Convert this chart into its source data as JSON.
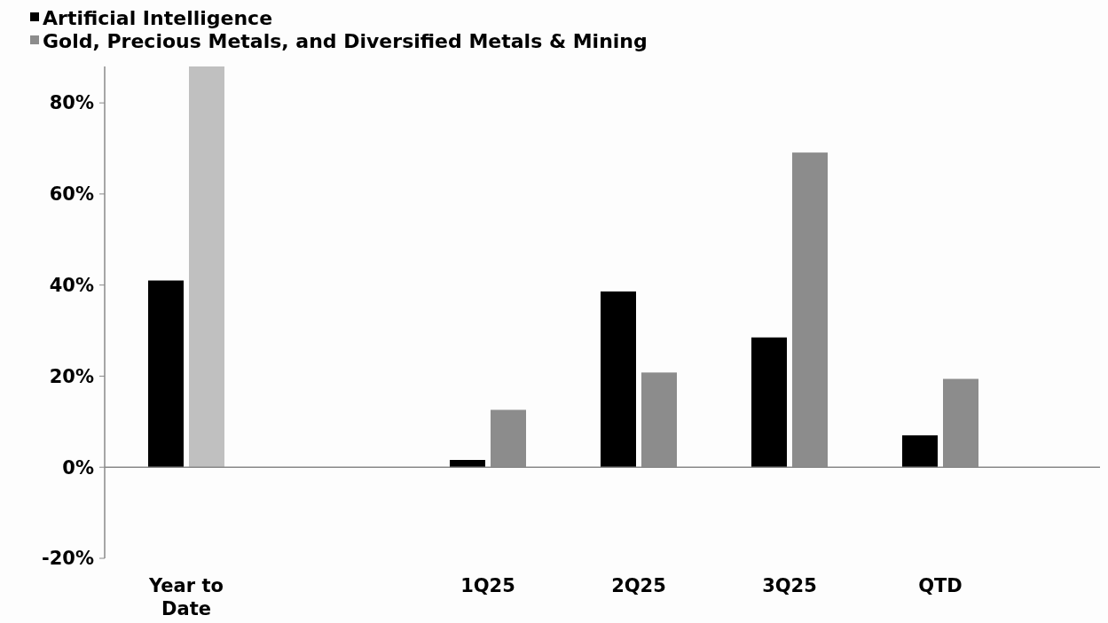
{
  "chart_data": {
    "type": "bar",
    "categories": [
      "Year to Date",
      null,
      "1Q25",
      "2Q25",
      "3Q25",
      "QTD"
    ],
    "series": [
      {
        "name": "Artificial Intelligence",
        "color": "#000000",
        "values": [
          41,
          null,
          1.6,
          38.6,
          28.5,
          7
        ]
      },
      {
        "name": "Gold, Precious Metals, and Diversified Metals & Mining",
        "color": "#8c8c8c",
        "colors": [
          "#c0c0c0",
          null,
          "#8c8c8c",
          "#8c8c8c",
          "#8c8c8c",
          "#8c8c8c"
        ],
        "values": [
          88,
          null,
          12.6,
          20.8,
          69.1,
          19.4
        ]
      }
    ],
    "ylim": [
      -20,
      88
    ],
    "yticks": [
      {
        "value": -20,
        "label": "-20%"
      },
      {
        "value": 0,
        "label": "0%"
      },
      {
        "value": 20,
        "label": "20%"
      },
      {
        "value": 40,
        "label": "40%"
      },
      {
        "value": 60,
        "label": "60%"
      },
      {
        "value": 80,
        "label": "80%"
      }
    ],
    "ref_lines": [
      {
        "axis": "y",
        "value": 0,
        "color": "#888888"
      }
    ],
    "grid": false,
    "legend": "top left"
  }
}
